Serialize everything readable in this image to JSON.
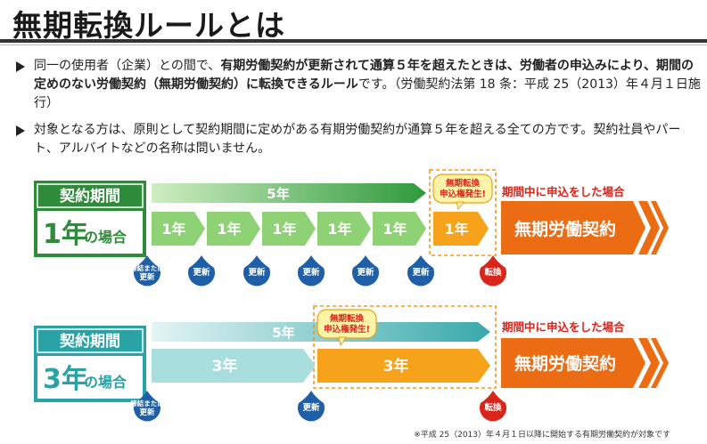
{
  "title": "無期転換ルールとは",
  "bullets": [
    {
      "bold1": "有期労働契約が更新されて通算５年を超えたときは、労働者の申込みにより、期間の定めのない労働契約（無期労働契約）に転換できるルール",
      "lead": "同一の使用者（企業）との間で、",
      "tail": "です。（労働契約法第 18 条：平成 25（2013）年４月１日施行）"
    },
    {
      "text": "対象となる方は、原則として契約期間に定めがある有期労働契約が通算５年を超える全ての方です。契約社員やパート、アルバイトなどの名称は問いません。"
    }
  ],
  "diagram1": {
    "label_top": "契約期間",
    "label_big": "1年",
    "label_small": "の場合",
    "span_label": "5年",
    "segments": [
      "1年",
      "1年",
      "1年",
      "1年",
      "1年"
    ],
    "sixth_segment": "1年",
    "bubble": [
      "無期転換",
      "申込権発生!"
    ],
    "apply_note": "期間中に申込をした場合",
    "result": "無期労働契約",
    "drop_first": [
      "締結または",
      "更新"
    ],
    "drop_renew": "更新",
    "drop_convert": "転換"
  },
  "diagram2": {
    "label_top": "契約期間",
    "label_big": "3年",
    "label_small": "の場合",
    "span_label": "5年",
    "segments": [
      "3年",
      "3年"
    ],
    "bubble": [
      "無期転換",
      "申込権発生!"
    ],
    "apply_note": "期間中に申込をした場合",
    "result": "無期労働契約",
    "drop_first": [
      "締結または",
      "更新"
    ],
    "drop_renew": "更新",
    "drop_convert": "転換"
  },
  "footnote": "※平成 25（2013）年４月１日以降に開始する有期労働契約が対象です",
  "colors": {
    "green_dark": "#2e8b3a",
    "green_light": "#8fd175",
    "teal_dark": "#2aa3a6",
    "teal_light": "#a9dede",
    "orange": "#f7a21b",
    "orange_dark": "#ec6c14",
    "red_text": "#d9261c",
    "blue_drop": "#1f5fa8",
    "red_drop": "#d9261c"
  }
}
